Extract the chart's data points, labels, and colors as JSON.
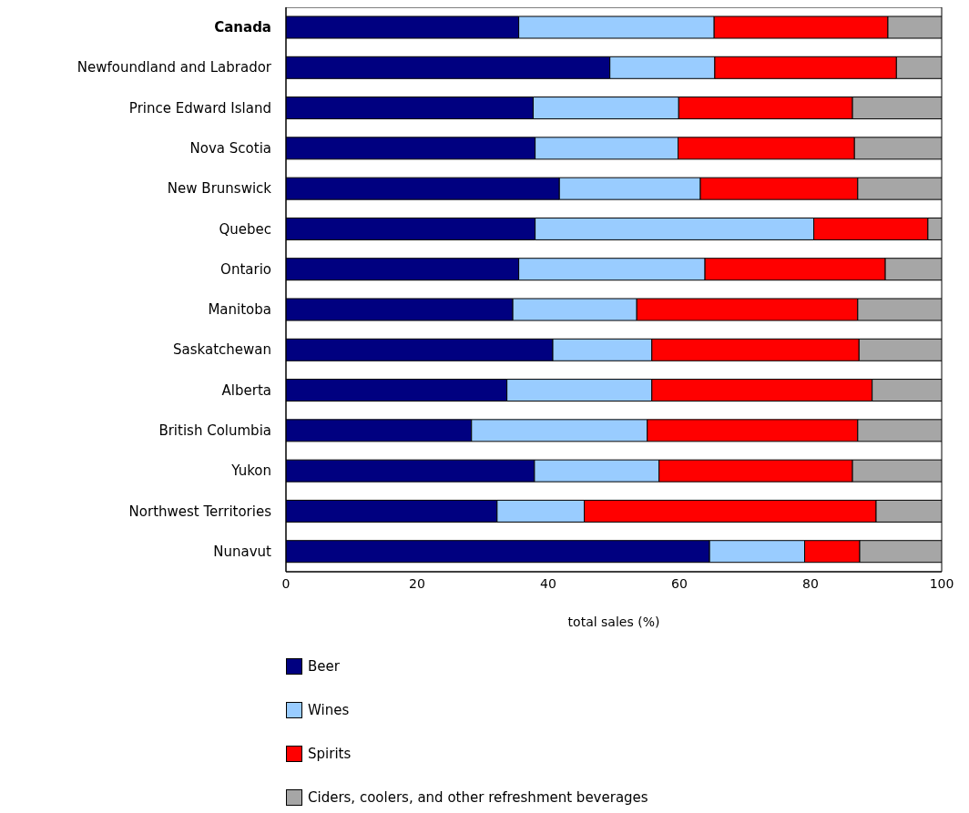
{
  "chart_data": {
    "type": "bar",
    "orientation": "horizontal",
    "stacked": true,
    "xlabel": "total sales (%)",
    "categories": [
      "Canada",
      "Newfoundland and Labrador",
      "Prince Edward Island",
      "Nova Scotia",
      "New Brunswick",
      "Quebec",
      "Ontario",
      "Manitoba",
      "Saskatchewan",
      "Alberta",
      "British Columbia",
      "Yukon",
      "Northwest Territories",
      "Nunavut"
    ],
    "series": [
      {
        "name": "Beer",
        "color": "#000080",
        "values": [
          35.5,
          49.4,
          37.7,
          38.0,
          41.7,
          38.0,
          35.5,
          34.6,
          40.7,
          33.7,
          28.3,
          37.9,
          32.2,
          64.6
        ]
      },
      {
        "name": "Wines",
        "color": "#99ccff",
        "values": [
          29.8,
          16.0,
          22.2,
          21.8,
          21.5,
          42.5,
          28.4,
          18.9,
          15.1,
          22.1,
          26.8,
          19.0,
          13.3,
          14.5
        ]
      },
      {
        "name": "Spirits",
        "color": "#ff0000",
        "values": [
          26.5,
          27.7,
          26.5,
          26.9,
          24.0,
          17.4,
          27.5,
          33.7,
          31.6,
          33.6,
          32.1,
          29.5,
          44.5,
          8.4
        ]
      },
      {
        "name": "Ciders, coolers, and other refreshment beverages",
        "color": "#a6a6a6",
        "values": [
          8.2,
          6.9,
          13.6,
          13.3,
          12.8,
          2.1,
          8.6,
          12.8,
          12.6,
          10.6,
          12.8,
          13.6,
          10.0,
          12.5
        ]
      }
    ],
    "xlim": [
      0,
      100
    ],
    "xticks": [
      0,
      20,
      40,
      60,
      80,
      100
    ],
    "legend": "bottom"
  }
}
